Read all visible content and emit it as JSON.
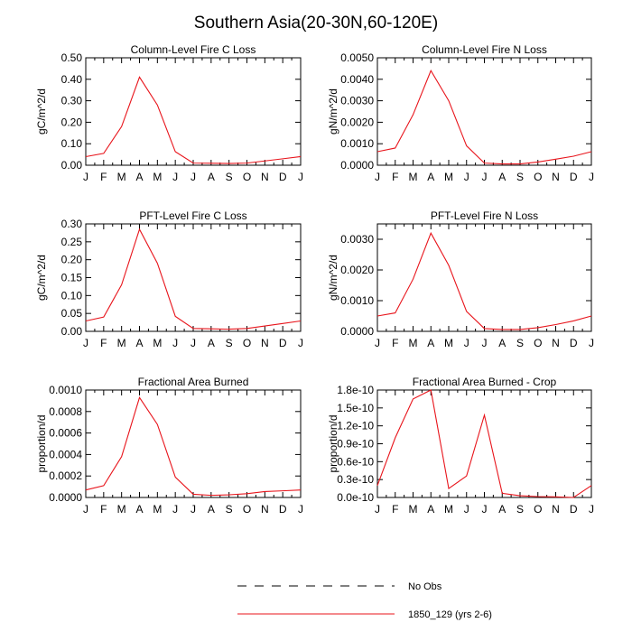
{
  "figure_title": "Southern Asia(20-30N,60-120E)",
  "legend": {
    "entries": [
      {
        "label": "No Obs",
        "color": "#000000",
        "style": "dashed"
      },
      {
        "label": "1850_129 (yrs 2-6)",
        "color": "#e8141b",
        "style": "solid"
      }
    ]
  },
  "chart_data": [
    {
      "type": "line",
      "title": "Column-Level Fire C Loss",
      "ylabel": "gC/m^2/d",
      "xlabel": "",
      "x": [
        "J",
        "F",
        "M",
        "A",
        "M",
        "J",
        "J",
        "A",
        "S",
        "O",
        "N",
        "D",
        "J"
      ],
      "ylim": [
        0,
        0.5
      ],
      "yticks": [
        0,
        0.1,
        0.2,
        0.3,
        0.4,
        0.5
      ],
      "ytick_labels": [
        "0.00",
        "0.10",
        "0.20",
        "0.30",
        "0.40",
        "0.50"
      ],
      "series": [
        {
          "name": "1850_129 (yrs 2-6)",
          "color": "#e8141b",
          "values": [
            0.04,
            0.055,
            0.18,
            0.41,
            0.28,
            0.063,
            0.01,
            0.009,
            0.008,
            0.01,
            0.02,
            0.03,
            0.04
          ]
        }
      ]
    },
    {
      "type": "line",
      "title": "Column-Level Fire N Loss",
      "ylabel": "gN/m^2/d",
      "xlabel": "",
      "x": [
        "J",
        "F",
        "M",
        "A",
        "M",
        "J",
        "J",
        "A",
        "S",
        "O",
        "N",
        "D",
        "J"
      ],
      "ylim": [
        0,
        0.005
      ],
      "yticks": [
        0,
        0.001,
        0.002,
        0.003,
        0.004,
        0.005
      ],
      "ytick_labels": [
        "0.0000",
        "0.0010",
        "0.0020",
        "0.0030",
        "0.0040",
        "0.0050"
      ],
      "series": [
        {
          "name": "1850_129 (yrs 2-6)",
          "color": "#e8141b",
          "values": [
            0.00063,
            0.0008,
            0.00235,
            0.0044,
            0.003,
            0.0009,
            0.0001,
            6e-05,
            6e-05,
            0.00015,
            0.00028,
            0.00042,
            0.00063
          ]
        }
      ]
    },
    {
      "type": "line",
      "title": "PFT-Level Fire C Loss",
      "ylabel": "gC/m^2/d",
      "xlabel": "",
      "x": [
        "J",
        "F",
        "M",
        "A",
        "M",
        "J",
        "J",
        "A",
        "S",
        "O",
        "N",
        "D",
        "J"
      ],
      "ylim": [
        0,
        0.3
      ],
      "yticks": [
        0,
        0.05,
        0.1,
        0.15,
        0.2,
        0.25,
        0.3
      ],
      "ytick_labels": [
        "0.00",
        "0.05",
        "0.10",
        "0.15",
        "0.20",
        "0.25",
        "0.30"
      ],
      "series": [
        {
          "name": "1850_129 (yrs 2-6)",
          "color": "#e8141b",
          "values": [
            0.029,
            0.04,
            0.13,
            0.285,
            0.19,
            0.042,
            0.008,
            0.007,
            0.006,
            0.008,
            0.015,
            0.022,
            0.029
          ]
        }
      ]
    },
    {
      "type": "line",
      "title": "PFT-Level Fire N Loss",
      "ylabel": "gN/m^2/d",
      "xlabel": "",
      "x": [
        "J",
        "F",
        "M",
        "A",
        "M",
        "J",
        "J",
        "A",
        "S",
        "O",
        "N",
        "D",
        "J"
      ],
      "ylim": [
        0,
        0.0035
      ],
      "yticks": [
        0,
        0.001,
        0.002,
        0.003
      ],
      "ytick_labels": [
        "0.0000",
        "0.0010",
        "0.0020",
        "0.0030"
      ],
      "series": [
        {
          "name": "1850_129 (yrs 2-6)",
          "color": "#e8141b",
          "values": [
            0.0005,
            0.0006,
            0.0017,
            0.0032,
            0.00215,
            0.00065,
            9e-05,
            6e-05,
            6e-05,
            0.00012,
            0.00022,
            0.00034,
            0.0005
          ]
        }
      ]
    },
    {
      "type": "line",
      "title": "Fractional Area Burned",
      "ylabel": "proportion/d",
      "xlabel": "",
      "x": [
        "J",
        "F",
        "M",
        "A",
        "M",
        "J",
        "J",
        "A",
        "S",
        "O",
        "N",
        "D",
        "J"
      ],
      "ylim": [
        0,
        0.001
      ],
      "yticks": [
        0,
        0.0002,
        0.0004,
        0.0006,
        0.0008,
        0.001
      ],
      "ytick_labels": [
        "0.0000",
        "0.0002",
        "0.0004",
        "0.0006",
        "0.0008",
        "0.0010"
      ],
      "series": [
        {
          "name": "1850_129 (yrs 2-6)",
          "color": "#e8141b",
          "values": [
            7e-05,
            0.00011,
            0.00038,
            0.00093,
            0.00068,
            0.00019,
            3e-05,
            2e-05,
            2.5e-05,
            3.5e-05,
            5.5e-05,
            6.2e-05,
            7e-05
          ]
        }
      ]
    },
    {
      "type": "line",
      "title": "Fractional Area Burned - Crop",
      "ylabel": "proportion/d",
      "xlabel": "",
      "x": [
        "J",
        "F",
        "M",
        "A",
        "M",
        "J",
        "J",
        "A",
        "S",
        "O",
        "N",
        "D",
        "J"
      ],
      "ylim": [
        0,
        1.8e-10
      ],
      "yticks": [
        0,
        3e-11,
        6e-11,
        9e-11,
        1.2e-10,
        1.5e-10,
        1.8e-10
      ],
      "ytick_labels": [
        "0.0e-10",
        "0.3e-10",
        "0.6e-10",
        "0.9e-10",
        "1.2e-10",
        "1.5e-10",
        "1.8e-10"
      ],
      "series": [
        {
          "name": "1850_129 (yrs 2-6)",
          "color": "#e8141b",
          "values": [
            2e-11,
            1e-10,
            1.65e-10,
            1.8e-10,
            1.5e-11,
            3.6e-11,
            1.38e-10,
            7e-12,
            3e-12,
            1.5e-12,
            1e-12,
            0.0,
            2e-11
          ]
        }
      ]
    }
  ]
}
